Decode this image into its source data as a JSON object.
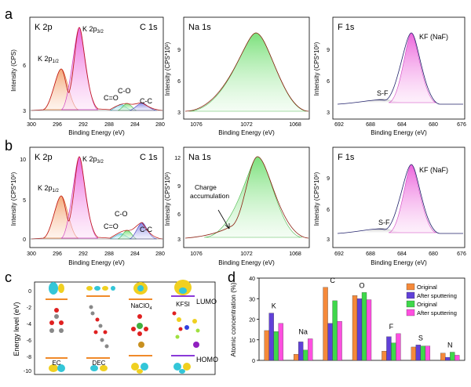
{
  "panel_letters": {
    "a": "a",
    "b": "b",
    "c": "c",
    "d": "d"
  },
  "xps": {
    "xlabel": "Binding Energy (eV)",
    "ylabel_cps": "Intensity (CPS*10³)",
    "ylabel_plain": "Intensity (CPS)",
    "k2p_ticks": [
      "300",
      "296",
      "292",
      "288",
      "284",
      "280"
    ],
    "na_ticks": [
      "1076",
      "1072",
      "1068"
    ],
    "f_ticks": [
      "692",
      "688",
      "684",
      "680",
      "676"
    ]
  },
  "spectra": {
    "a": {
      "k": {
        "title_left": "K 2p",
        "title_right": "C 1s",
        "yticks": [
          "3",
          "6"
        ],
        "peak_p32": "K 2p3/2",
        "peak_p12": "K 2p1/2",
        "co_dbl": "C=O",
        "co_sgl": "C-O",
        "cc": "C-C"
      },
      "na": {
        "title": "Na 1s",
        "yticks": [
          "3",
          "6",
          "9"
        ]
      },
      "f": {
        "title": "F 1s",
        "yticks": [
          "3",
          "6",
          "9"
        ],
        "kf": "KF (NaF)",
        "sf": "S-F"
      }
    },
    "b": {
      "k": {
        "title_left": "K 2p",
        "title_right": "C 1s",
        "yticks": [
          "0",
          "5",
          "10"
        ],
        "peak_p32": "K 2p3/2",
        "peak_p12": "K 2p1/2",
        "co_dbl": "C=O",
        "co_sgl": "C-O",
        "cc": "C-C"
      },
      "na": {
        "title": "Na 1s",
        "yticks": [
          "3",
          "6",
          "9",
          "12"
        ],
        "annot": "Charge accumulation"
      },
      "f": {
        "title": "F 1s",
        "yticks": [
          "3",
          "6",
          "9"
        ],
        "kf": "KF (NaF)",
        "sf": "S-F"
      }
    }
  },
  "panel_c": {
    "ylabel": "Energy level (eV)",
    "yticks": [
      "0",
      "-2",
      "-4",
      "-6",
      "-8",
      "-10"
    ],
    "molecules": [
      "EC",
      "DEC",
      "NaClO4",
      "KFSI"
    ],
    "lumo_label": "LUMO",
    "homo_label": "HOMO"
  },
  "chart_data": {
    "type": "bar",
    "title": "",
    "xlabel": "",
    "ylabel": "Atomic concentration (%)",
    "ylim": [
      0,
      40
    ],
    "yticks": [
      0,
      10,
      20,
      30,
      40
    ],
    "categories": [
      "K",
      "Na",
      "C",
      "O",
      "F",
      "S",
      "N"
    ],
    "series": [
      {
        "name": "Original",
        "color": "#f5893a",
        "values": [
          14.5,
          3.0,
          35.5,
          31.5,
          4.5,
          6.5,
          3.5
        ]
      },
      {
        "name": "After sputtering",
        "color": "#6040d8",
        "values": [
          23.0,
          9.0,
          18.0,
          30.0,
          11.5,
          7.5,
          1.5
        ]
      },
      {
        "name": "Original",
        "color": "#3ed84a",
        "values": [
          14.0,
          5.0,
          29.0,
          33.0,
          8.5,
          7.0,
          4.0
        ]
      },
      {
        "name": "After sputtering",
        "color": "#ff4fe0",
        "values": [
          18.0,
          10.5,
          19.0,
          29.5,
          13.0,
          7.0,
          2.5
        ]
      }
    ],
    "legend_position": "top-right"
  }
}
